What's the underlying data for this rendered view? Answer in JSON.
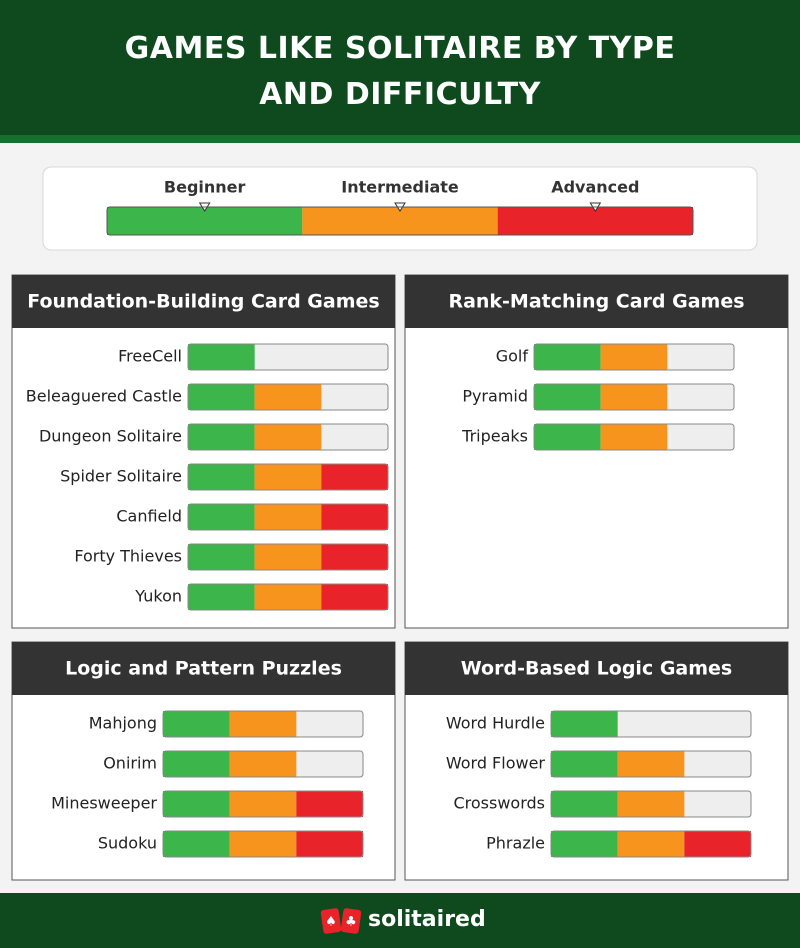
{
  "header": {
    "title": "GAMES LIKE SOLITAIRE BY TYPE AND DIFFICULTY"
  },
  "legend": {
    "levels": [
      {
        "label": "Beginner",
        "color": "#3cb54a"
      },
      {
        "label": "Intermediate",
        "color": "#f7941d"
      },
      {
        "label": "Advanced",
        "color": "#e8232a"
      }
    ]
  },
  "panels": [
    {
      "title": "Foundation-Building Card Games",
      "games": [
        {
          "name": "FreeCell",
          "level": 1
        },
        {
          "name": "Beleaguered Castle",
          "level": 2
        },
        {
          "name": "Dungeon Solitaire",
          "level": 2
        },
        {
          "name": "Spider Solitaire",
          "level": 3
        },
        {
          "name": "Canfield",
          "level": 3
        },
        {
          "name": "Forty Thieves",
          "level": 3
        },
        {
          "name": "Yukon",
          "level": 3
        }
      ]
    },
    {
      "title": "Rank-Matching Card Games",
      "games": [
        {
          "name": "Golf",
          "level": 2
        },
        {
          "name": "Pyramid",
          "level": 2
        },
        {
          "name": "Tripeaks",
          "level": 2
        }
      ]
    },
    {
      "title": "Logic and Pattern Puzzles",
      "games": [
        {
          "name": "Mahjong",
          "level": 2
        },
        {
          "name": "Onirim",
          "level": 2
        },
        {
          "name": "Minesweeper",
          "level": 3
        },
        {
          "name": "Sudoku",
          "level": 3
        }
      ]
    },
    {
      "title": "Word-Based Logic Games",
      "games": [
        {
          "name": "Word Hurdle",
          "level": 1
        },
        {
          "name": "Word Flower",
          "level": 2
        },
        {
          "name": "Crosswords",
          "level": 2
        },
        {
          "name": "Phrazle",
          "level": 3
        }
      ]
    }
  ],
  "footer": {
    "brand": "solitaired"
  }
}
